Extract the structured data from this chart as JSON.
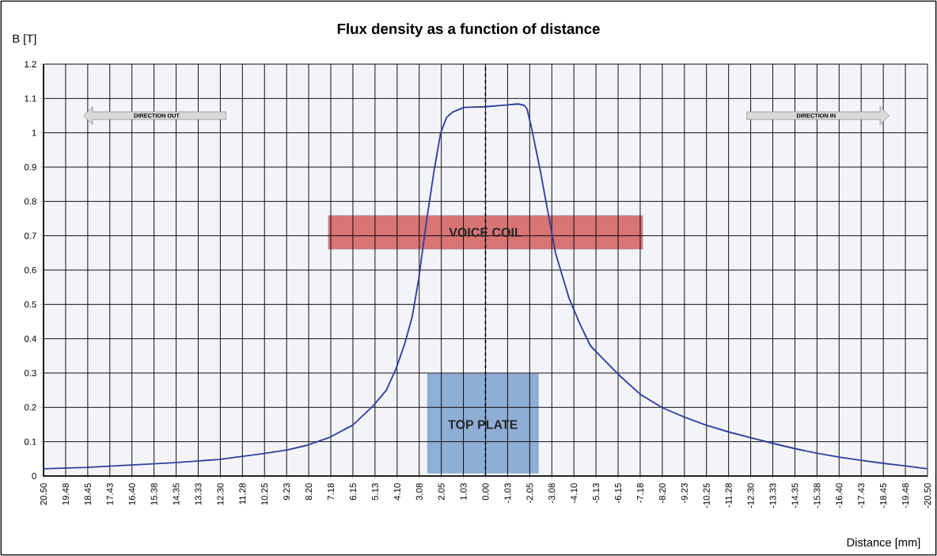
{
  "chart_data": {
    "type": "line",
    "title": "Flux density as a function of distance",
    "xlabel": "Distance [mm]",
    "ylabel": "B [T]",
    "xlim": [
      20.5,
      -20.5
    ],
    "ylim": [
      0,
      1.2
    ],
    "xticks": [
      {
        "value": 20.5,
        "label": "20.50"
      },
      {
        "value": 19.475,
        "label": "19.48"
      },
      {
        "value": 18.45,
        "label": "18.45"
      },
      {
        "value": 17.425,
        "label": "17.43"
      },
      {
        "value": 16.4,
        "label": "16.40"
      },
      {
        "value": 15.375,
        "label": "15.38"
      },
      {
        "value": 14.35,
        "label": "14.35"
      },
      {
        "value": 13.325,
        "label": "13.33"
      },
      {
        "value": 12.3,
        "label": "12.30"
      },
      {
        "value": 11.275,
        "label": "11.28"
      },
      {
        "value": 10.25,
        "label": "10.25"
      },
      {
        "value": 9.225,
        "label": "9.23"
      },
      {
        "value": 8.2,
        "label": "8.20"
      },
      {
        "value": 7.175,
        "label": "7.18"
      },
      {
        "value": 6.15,
        "label": "6.15"
      },
      {
        "value": 5.125,
        "label": "5.13"
      },
      {
        "value": 4.1,
        "label": "4.10"
      },
      {
        "value": 3.075,
        "label": "3.08"
      },
      {
        "value": 2.05,
        "label": "2.05"
      },
      {
        "value": 1.025,
        "label": "1.03"
      },
      {
        "value": 0,
        "label": "0.00"
      },
      {
        "value": -1.025,
        "label": "-1.03"
      },
      {
        "value": -2.05,
        "label": "-2.05"
      },
      {
        "value": -3.075,
        "label": "-3.08"
      },
      {
        "value": -4.1,
        "label": "-4.10"
      },
      {
        "value": -5.125,
        "label": "-5.13"
      },
      {
        "value": -6.15,
        "label": "-6.15"
      },
      {
        "value": -7.175,
        "label": "-7.18"
      },
      {
        "value": -8.2,
        "label": "-8.20"
      },
      {
        "value": -9.225,
        "label": "-9.23"
      },
      {
        "value": -10.25,
        "label": "-10.25"
      },
      {
        "value": -11.275,
        "label": "-11.28"
      },
      {
        "value": -12.3,
        "label": "-12.30"
      },
      {
        "value": -13.325,
        "label": "-13.33"
      },
      {
        "value": -14.35,
        "label": "-14.35"
      },
      {
        "value": -15.375,
        "label": "-15.38"
      },
      {
        "value": -16.4,
        "label": "-16.40"
      },
      {
        "value": -17.425,
        "label": "-17.43"
      },
      {
        "value": -18.45,
        "label": "-18.45"
      },
      {
        "value": -19.475,
        "label": "-19.48"
      },
      {
        "value": -20.5,
        "label": "-20.50"
      }
    ],
    "yticks": [
      0,
      0.1,
      0.2,
      0.3,
      0.4,
      0.5,
      0.6,
      0.7,
      0.8,
      0.9,
      1,
      1.1,
      1.2
    ],
    "grid": true,
    "ref_lines": [
      {
        "axis": "x",
        "value": 0,
        "color": "#000000",
        "line_style": "dashed"
      }
    ],
    "annotations": [
      {
        "text": "VOICE COIL",
        "x": 0,
        "y": 0.71
      },
      {
        "text": "TOP PLATE",
        "x": 0.12,
        "y": 0.15
      },
      "DIRECTION OUT",
      "DIRECTION IN"
    ],
    "series": [
      {
        "color": "#3040a0",
        "x": [
          20.5,
          18.5,
          16.45,
          14.4,
          12.37,
          10.35,
          9.2,
          8.25,
          7.22,
          6.16,
          5.2,
          4.6,
          4.14,
          3.75,
          3.4,
          3.1,
          2.74,
          2.37,
          2.08,
          1.8,
          1.53,
          1.0,
          0,
          -0.94,
          -1.5,
          -1.8,
          -1.93,
          -2.15,
          -2.52,
          -2.89,
          -3.25,
          -3.88,
          -4.4,
          -4.87,
          -6.16,
          -7.18,
          -8.2,
          -9.2,
          -10.24,
          -11.3,
          -12.33,
          -13.4,
          -14.4,
          -15.4,
          -16.4,
          -17.4,
          -18.45,
          -19.5,
          -20.5
        ],
        "values": [
          0.021,
          0.025,
          0.032,
          0.039,
          0.048,
          0.065,
          0.076,
          0.09,
          0.113,
          0.148,
          0.205,
          0.25,
          0.314,
          0.385,
          0.464,
          0.573,
          0.741,
          0.896,
          1.0,
          1.045,
          1.06,
          1.074,
          1.076,
          1.081,
          1.084,
          1.08,
          1.069,
          1.01,
          0.896,
          0.771,
          0.649,
          0.517,
          0.44,
          0.379,
          0.296,
          0.238,
          0.199,
          0.172,
          0.148,
          0.128,
          0.111,
          0.094,
          0.079,
          0.066,
          0.055,
          0.046,
          0.037,
          0.029,
          0.021
        ]
      }
    ]
  }
}
